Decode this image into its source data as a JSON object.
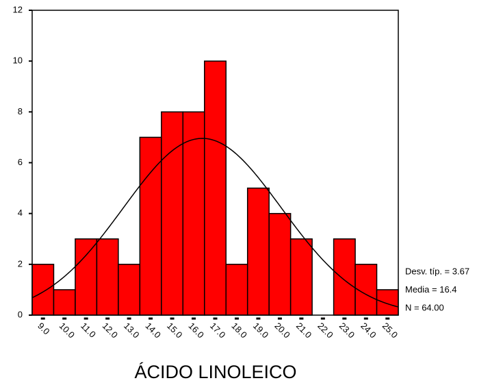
{
  "chart_data": {
    "type": "histogram",
    "xlabel": "ÁCIDO LINOLEICO",
    "bins": [
      8.5,
      9.5,
      10.5,
      11.5,
      12.5,
      13.5,
      14.5,
      15.5,
      16.5,
      17.5,
      18.5,
      19.5,
      20.5,
      21.5,
      22.5,
      23.5,
      24.5,
      25.5
    ],
    "values": [
      2,
      1,
      3,
      3,
      2,
      7,
      8,
      8,
      10,
      2,
      5,
      4,
      3,
      0,
      3,
      2,
      1
    ],
    "color": "#ff0000",
    "xlim": [
      8.5,
      25.5
    ],
    "xticks": [
      {
        "value": 9,
        "label": "9.0"
      },
      {
        "value": 10,
        "label": "10.0"
      },
      {
        "value": 11,
        "label": "11.0"
      },
      {
        "value": 12,
        "label": "12.0"
      },
      {
        "value": 13,
        "label": "13.0"
      },
      {
        "value": 14,
        "label": "14.0"
      },
      {
        "value": 15,
        "label": "15.0"
      },
      {
        "value": 16,
        "label": "16.0"
      },
      {
        "value": 17,
        "label": "17.0"
      },
      {
        "value": 18,
        "label": "18.0"
      },
      {
        "value": 19,
        "label": "19.0"
      },
      {
        "value": 20,
        "label": "20.0"
      },
      {
        "value": 21,
        "label": "21.0"
      },
      {
        "value": 22,
        "label": "22.0"
      },
      {
        "value": 23,
        "label": "23.0"
      },
      {
        "value": 24,
        "label": "24.0"
      },
      {
        "value": 25,
        "label": "25.0"
      }
    ],
    "ylim": [
      0,
      12
    ],
    "yticks": [
      0,
      2,
      4,
      6,
      8,
      10,
      12
    ],
    "stats": [
      {
        "label": "Desv. típ. = 3.67",
        "value": 3.67
      },
      {
        "label": "Media = 16.4",
        "value": 16.4
      },
      {
        "label": "N = 64.00",
        "value": 64
      }
    ]
  }
}
